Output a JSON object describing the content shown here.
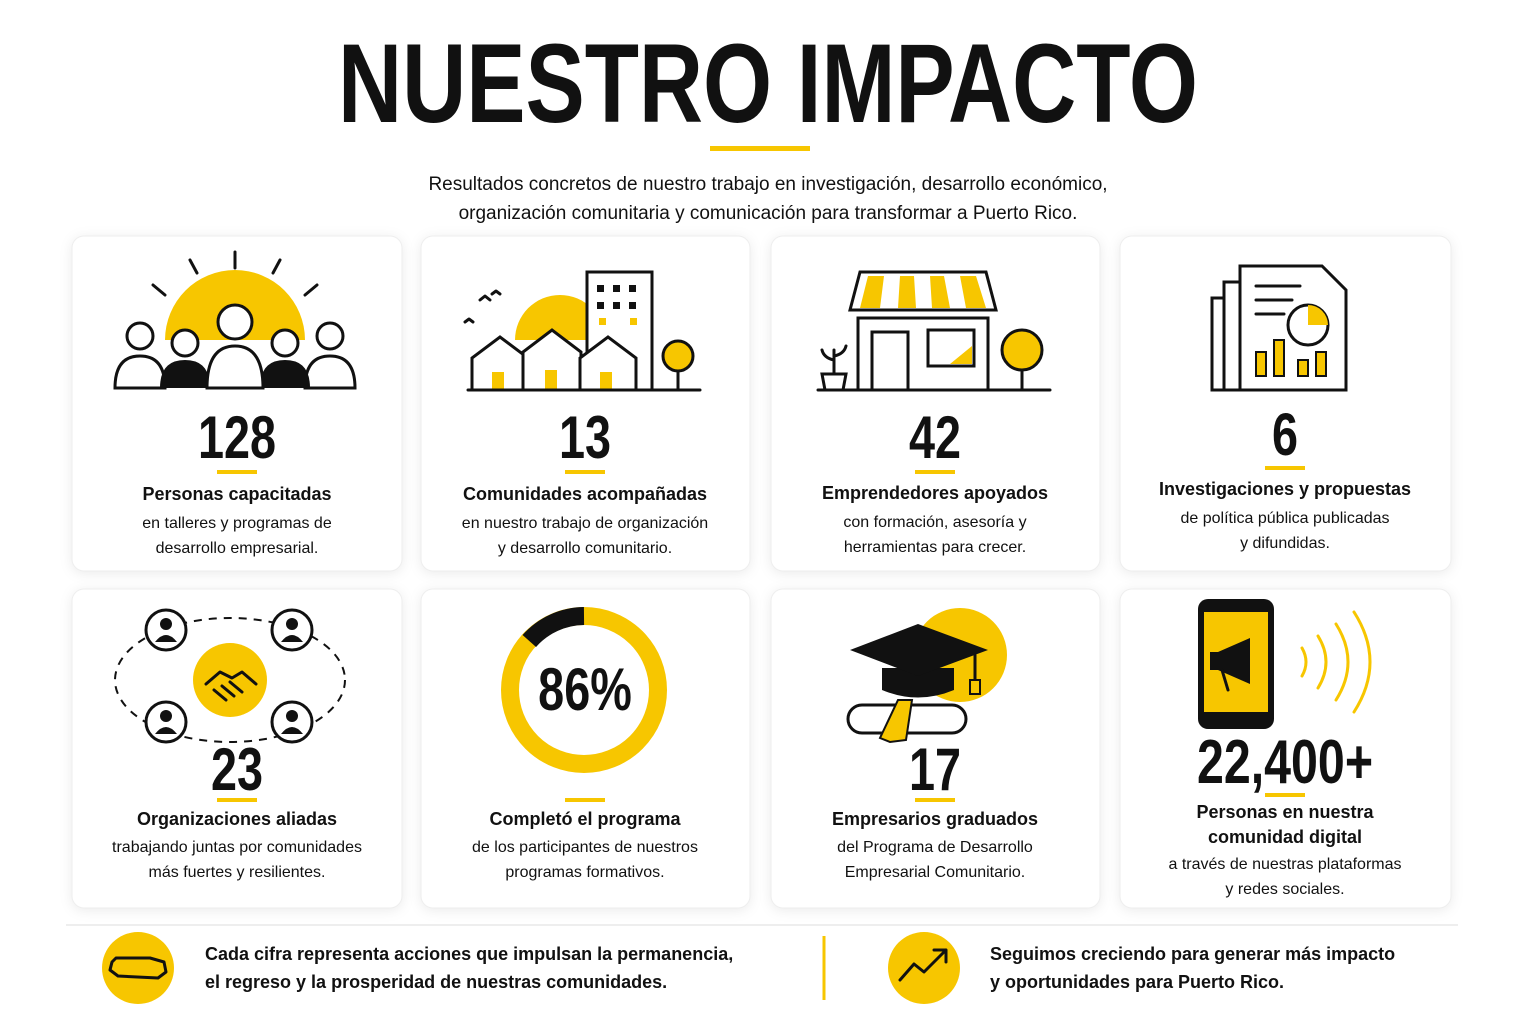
{
  "header": {
    "title": "NUESTRO IMPACTO",
    "subtitle": [
      "Resultados concretos de nuestro trabajo en investigación, desarrollo económico,",
      "organización comunitaria y comunicación para transformar a Puerto Rico."
    ]
  },
  "cards": [
    {
      "stat": "128",
      "label": [
        "Personas capacitadas"
      ],
      "description": [
        "en talleres y programas de",
        "desarrollo empresarial."
      ]
    },
    {
      "stat": "13",
      "label": [
        "Comunidades acompañadas"
      ],
      "description": [
        "en nuestro trabajo de organización",
        "y desarrollo comunitario."
      ]
    },
    {
      "stat": "42",
      "label": [
        "Emprendedores apoyados"
      ],
      "description": [
        "con formación, asesoría y",
        "herramientas para crecer."
      ]
    },
    {
      "stat": "6",
      "label": [
        "Investigaciones y propuestas"
      ],
      "description": [
        "de política pública publicadas",
        "y difundidas."
      ]
    },
    {
      "stat": "23",
      "label": [
        "Organizaciones aliadas"
      ],
      "description": [
        "trabajando juntas por comunidades",
        "más fuertes y resilientes."
      ]
    },
    {
      "stat": "86%",
      "label": [
        "Completó el programa"
      ],
      "description": [
        "de los participantes de nuestros",
        "programas formativos."
      ]
    },
    {
      "stat": "17",
      "label": [
        "Empresarios graduados"
      ],
      "description": [
        "del Programa de Desarrollo",
        "Empresarial Comunitario."
      ]
    },
    {
      "stat": "22,400+",
      "label": [
        "Personas en nuestra",
        "comunidad digital"
      ],
      "description": [
        "a través de nuestras plataformas",
        "y redes sociales."
      ]
    }
  ],
  "footer": [
    {
      "text": [
        "Cada cifra representa acciones que impulsan la permanencia,",
        "el regreso y la prosperidad de nuestras comunidades."
      ]
    },
    {
      "text": [
        "Seguimos creciendo para generar más impacto",
        "y oportunidades para Puerto Rico."
      ]
    }
  ]
}
